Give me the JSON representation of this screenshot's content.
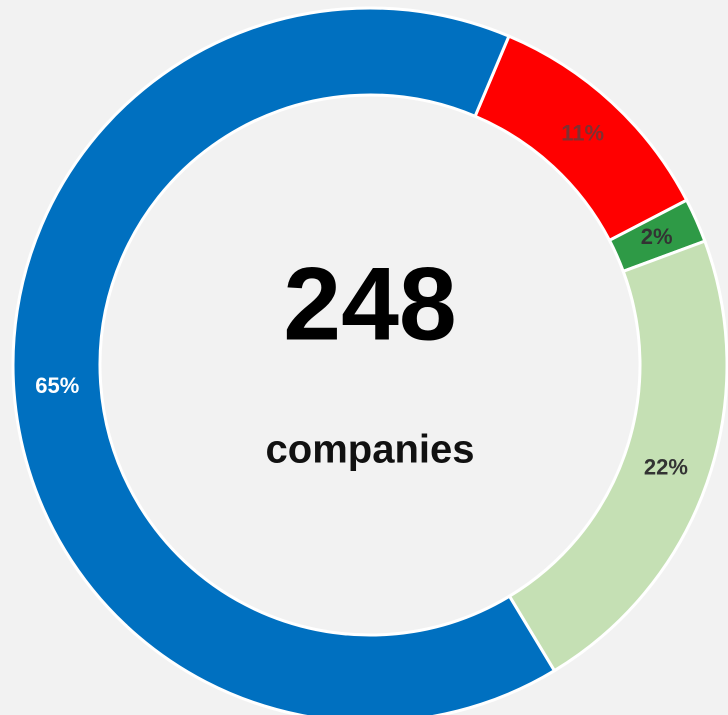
{
  "chart_data": {
    "type": "donut",
    "values": [
      11,
      2,
      22,
      65
    ],
    "value_labels": [
      "11%",
      "2%",
      "22%",
      "65%"
    ],
    "colors": [
      "#ff0000",
      "#2e9a46",
      "#c5e0b4",
      "#0070c0"
    ],
    "label_colors": [
      "#7f3030",
      "#333333",
      "#333333",
      "#ffffff"
    ],
    "center_value": "248",
    "center_label": "companies"
  }
}
